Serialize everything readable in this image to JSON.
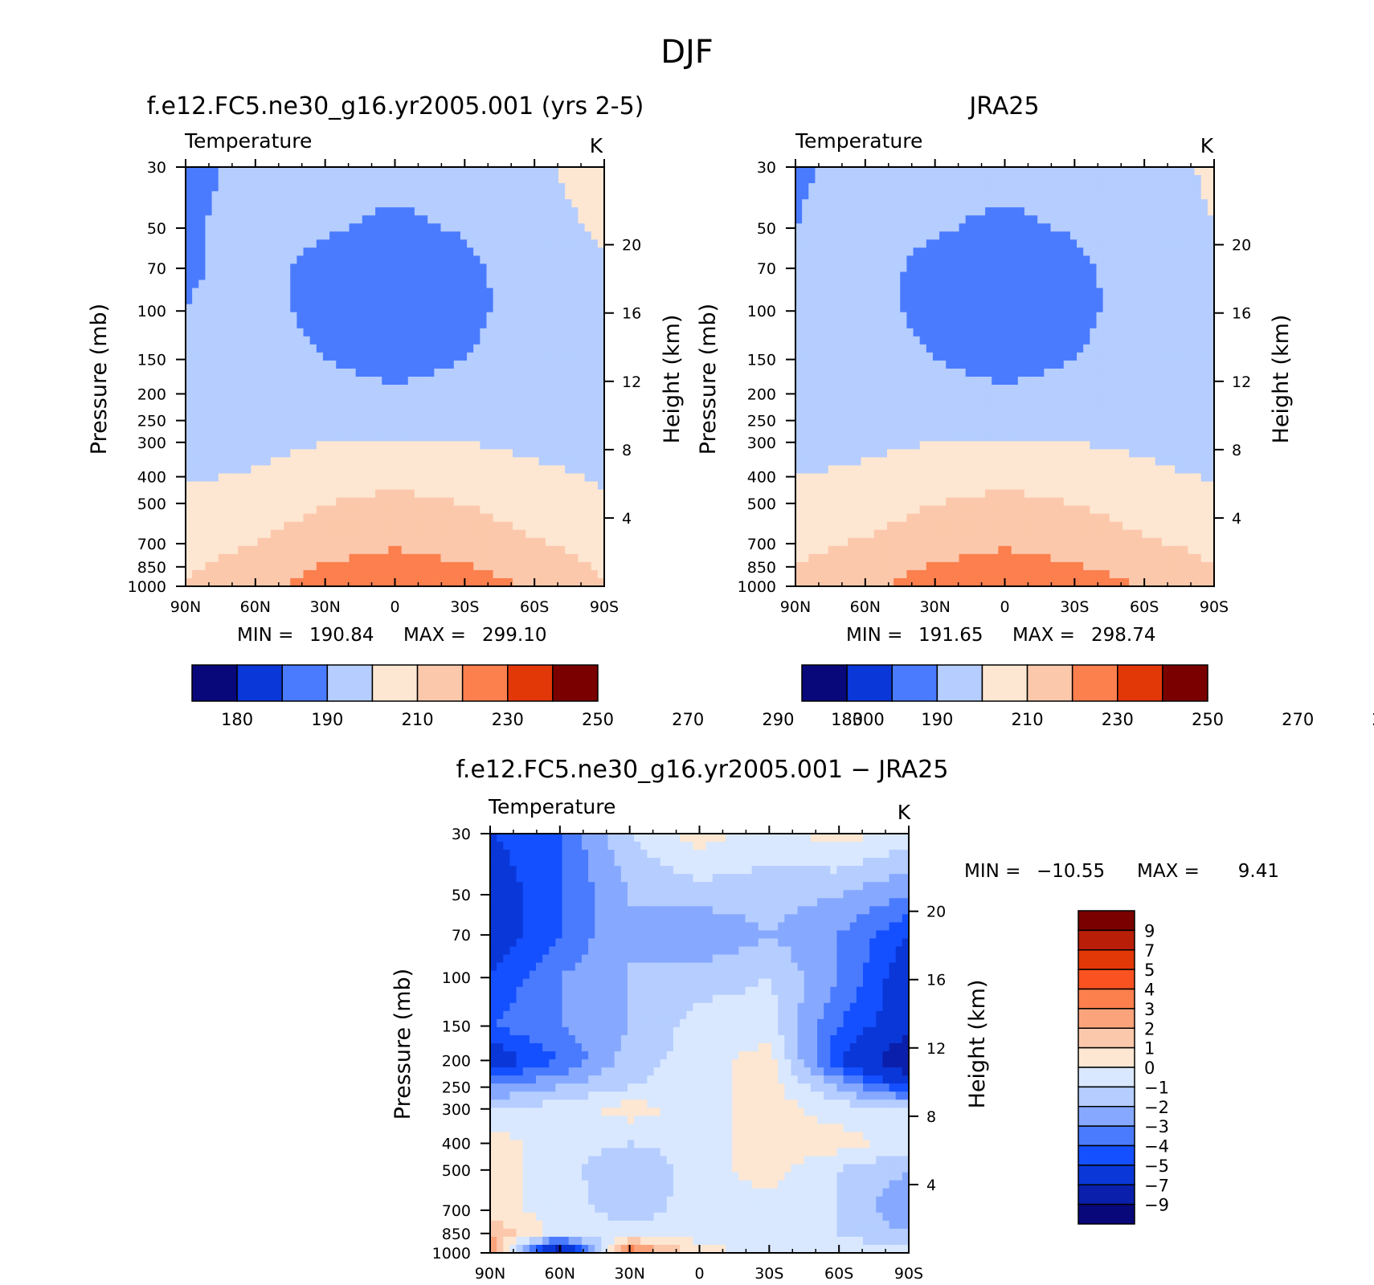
{
  "main_title": "DJF",
  "colors": {
    "abs_palette": [
      "#08087a",
      "#0a1fab",
      "#0a37d8",
      "#1450ff",
      "#4a7bff",
      "#86a9ff",
      "#b5cdff",
      "#d9e8ff",
      "#fde7d2",
      "#fcc8ab",
      "#fba47c",
      "#fc7f4e",
      "#fb5221",
      "#e23707",
      "#b91e08",
      "#7a0000"
    ],
    "diff_palette": [
      "#08087a",
      "#0a1fab",
      "#0a37d8",
      "#1450ff",
      "#4a7bff",
      "#86a9ff",
      "#b5cdff",
      "#d9e8ff",
      "#fde7d2",
      "#fcc8ab",
      "#fba47c",
      "#fc7f4e",
      "#fb5221",
      "#e23707",
      "#b91e08",
      "#7a0000"
    ]
  },
  "axes": {
    "pressure_label": "Pressure (mb)",
    "height_label": "Height (km)",
    "pressure_ticks": [
      "30",
      "50",
      "70",
      "100",
      "150",
      "200",
      "250",
      "300",
      "400",
      "500",
      "700",
      "850",
      "1000"
    ],
    "height_ticks": [
      "4",
      "8",
      "12",
      "16",
      "20"
    ],
    "lat_ticks": [
      "90N",
      "60N",
      "30N",
      "0",
      "30S",
      "60S",
      "90S"
    ]
  },
  "panels": [
    {
      "title": "f.e12.FC5.ne30_g16.yr2005.001 (yrs 2-5)",
      "var_label": "Temperature",
      "units": "K",
      "min_label": "MIN =",
      "min_value": "190.84",
      "max_label": "MAX =",
      "max_value": "299.10"
    },
    {
      "title": "JRA25",
      "var_label": "Temperature",
      "units": "K",
      "min_label": "MIN =",
      "min_value": "191.65",
      "max_label": "MAX =",
      "max_value": "298.74"
    },
    {
      "title": "f.e12.FC5.ne30_g16.yr2005.001 − JRA25",
      "var_label": "Temperature",
      "units": "K",
      "min_label": "MIN =",
      "min_value": "−10.55",
      "max_label": "MAX =",
      "max_value": "9.41"
    }
  ],
  "abs_colorbar_labels": [
    "180",
    "190",
    "210",
    "230",
    "250",
    "270",
    "290",
    "300"
  ],
  "diff_colorbar_labels": [
    "9",
    "7",
    "5",
    "4",
    "3",
    "2",
    "1",
    "0",
    "−1",
    "−2",
    "−3",
    "−4",
    "−5",
    "−7",
    "−9"
  ],
  "chart_data": [
    {
      "type": "heatmap",
      "title": "f.e12.FC5.ne30_g16.yr2005.001 (yrs 2-5)",
      "variable": "Temperature",
      "units": "K",
      "xlabel": "",
      "ylabel": "Pressure (mb)",
      "ylabel_right": "Height (km)",
      "x": [
        "90N",
        "60N",
        "30N",
        "0",
        "30S",
        "60S",
        "90S"
      ],
      "y": [
        30,
        50,
        70,
        100,
        150,
        200,
        250,
        300,
        400,
        500,
        700,
        850,
        1000
      ],
      "y_scale": "log",
      "values": [
        [
          205,
          215,
          220,
          218,
          220,
          228,
          235
        ],
        [
          208,
          215,
          212,
          205,
          212,
          225,
          232
        ],
        [
          208,
          215,
          205,
          200,
          205,
          220,
          228
        ],
        [
          210,
          216,
          205,
          198,
          205,
          218,
          226
        ],
        [
          212,
          217,
          210,
          205,
          210,
          220,
          225
        ],
        [
          212,
          218,
          215,
          212,
          215,
          218,
          220
        ],
        [
          215,
          220,
          222,
          220,
          222,
          222,
          222
        ],
        [
          220,
          224,
          230,
          232,
          230,
          226,
          222
        ],
        [
          228,
          232,
          242,
          245,
          242,
          234,
          228
        ],
        [
          235,
          238,
          250,
          255,
          250,
          240,
          232
        ],
        [
          245,
          250,
          262,
          268,
          262,
          252,
          244
        ],
        [
          248,
          256,
          272,
          278,
          272,
          260,
          248
        ],
        [
          250,
          262,
          282,
          290,
          282,
          268,
          250
        ]
      ],
      "levels": [
        180,
        190,
        210,
        230,
        250,
        270,
        290,
        300
      ],
      "min": 190.84,
      "max": 299.1
    },
    {
      "type": "heatmap",
      "title": "JRA25",
      "variable": "Temperature",
      "units": "K",
      "xlabel": "",
      "ylabel": "Pressure (mb)",
      "ylabel_right": "Height (km)",
      "x": [
        "90N",
        "60N",
        "30N",
        "0",
        "30S",
        "60S",
        "90S"
      ],
      "y": [
        30,
        50,
        70,
        100,
        150,
        200,
        250,
        300,
        400,
        500,
        700,
        850,
        1000
      ],
      "y_scale": "log",
      "values": [
        [
          208,
          215,
          218,
          218,
          220,
          225,
          232
        ],
        [
          210,
          215,
          212,
          205,
          212,
          223,
          230
        ],
        [
          210,
          216,
          205,
          200,
          205,
          220,
          228
        ],
        [
          212,
          216,
          205,
          198,
          205,
          218,
          226
        ],
        [
          214,
          217,
          210,
          205,
          210,
          218,
          224
        ],
        [
          215,
          218,
          215,
          212,
          215,
          220,
          222
        ],
        [
          218,
          222,
          222,
          220,
          222,
          222,
          220
        ],
        [
          222,
          226,
          230,
          232,
          230,
          226,
          218
        ],
        [
          230,
          234,
          242,
          245,
          242,
          236,
          228
        ],
        [
          236,
          240,
          250,
          255,
          250,
          242,
          234
        ],
        [
          246,
          252,
          262,
          268,
          262,
          252,
          246
        ],
        [
          250,
          258,
          272,
          278,
          272,
          262,
          250
        ],
        [
          252,
          264,
          282,
          290,
          282,
          268,
          252
        ]
      ],
      "levels": [
        180,
        190,
        210,
        230,
        250,
        270,
        290,
        300
      ],
      "min": 191.65,
      "max": 298.74
    },
    {
      "type": "heatmap",
      "title": "f.e12.FC5.ne30_g16.yr2005.001 − JRA25",
      "variable": "Temperature",
      "units": "K",
      "xlabel": "",
      "ylabel": "Pressure (mb)",
      "ylabel_right": "Height (km)",
      "x": [
        "90N",
        "60N",
        "30N",
        "0",
        "30S",
        "60S",
        "90S"
      ],
      "y": [
        30,
        50,
        70,
        100,
        150,
        200,
        250,
        300,
        400,
        500,
        700,
        850,
        1000
      ],
      "y_scale": "log",
      "values": [
        [
          -5,
          -4,
          -1,
          0.5,
          -0.5,
          0.5,
          -0.5
        ],
        [
          -6,
          -4,
          -2,
          -1.5,
          -1.5,
          -2,
          -3
        ],
        [
          -6,
          -4,
          -2,
          -3,
          -2,
          -3,
          -5
        ],
        [
          -5,
          -3,
          -2,
          -1.5,
          -1,
          -3,
          -6
        ],
        [
          -4,
          -3,
          -2,
          -0.5,
          -0.5,
          -4,
          -6
        ],
        [
          -6,
          -4,
          -1.5,
          -0.5,
          0.5,
          -5,
          -9
        ],
        [
          -3,
          -2,
          -1,
          -0.5,
          0.5,
          -2,
          -5
        ],
        [
          -1,
          -0.5,
          0.5,
          -0.5,
          0.5,
          -0.5,
          -1
        ],
        [
          0.5,
          -0.5,
          -1,
          -0.5,
          0.5,
          0.5,
          -0.5
        ],
        [
          0.5,
          -0.5,
          -2,
          -0.5,
          0.5,
          -1,
          -2
        ],
        [
          0.5,
          -0.5,
          -1.5,
          -0.5,
          -0.5,
          -1,
          -3
        ],
        [
          2,
          -0.5,
          -0.5,
          -0.5,
          -0.5,
          -1,
          -2
        ],
        [
          3,
          -9,
          4,
          0.5,
          -0.5,
          -0.5,
          -0.5
        ]
      ],
      "levels": [
        -9,
        -7,
        -5,
        -4,
        -3,
        -2,
        -1,
        0,
        1,
        2,
        3,
        4,
        5,
        7,
        9
      ],
      "min": -10.55,
      "max": 9.41
    }
  ]
}
